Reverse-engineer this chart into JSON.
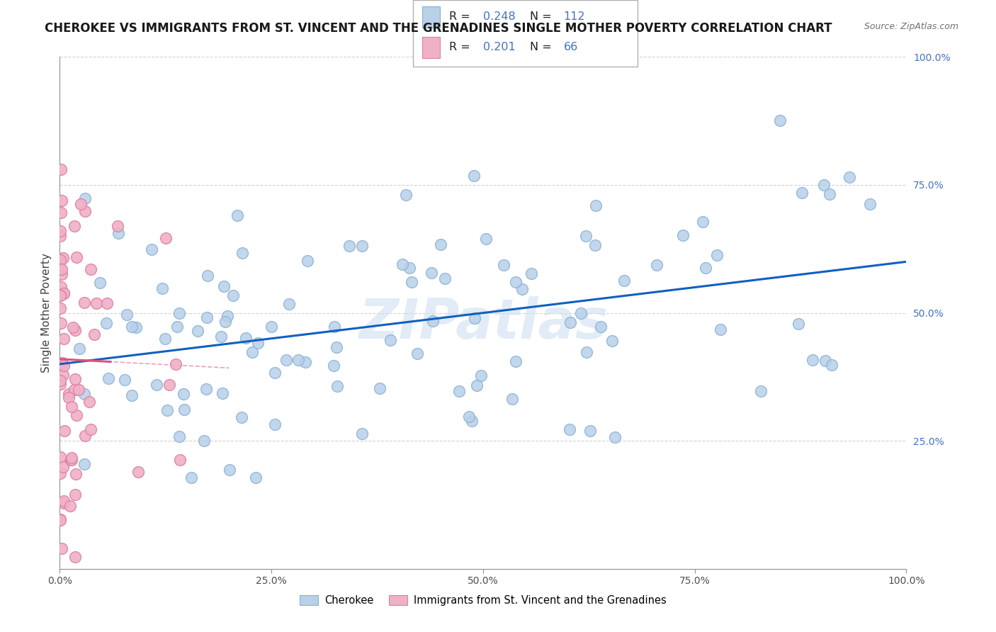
{
  "title": "CHEROKEE VS IMMIGRANTS FROM ST. VINCENT AND THE GRENADINES SINGLE MOTHER POVERTY CORRELATION CHART",
  "source": "Source: ZipAtlas.com",
  "ylabel": "Single Mother Poverty",
  "xlim": [
    0,
    1.0
  ],
  "ylim": [
    0,
    1.0
  ],
  "xtick_labels": [
    "0.0%",
    "25.0%",
    "50.0%",
    "75.0%",
    "100.0%"
  ],
  "xtick_vals": [
    0.0,
    0.25,
    0.5,
    0.75,
    1.0
  ],
  "ytick_labels": [
    "100.0%",
    "75.0%",
    "50.0%",
    "25.0%"
  ],
  "ytick_vals": [
    1.0,
    0.75,
    0.5,
    0.25
  ],
  "legend_label1": "Cherokee",
  "legend_label2": "Immigrants from St. Vincent and the Grenadines",
  "R1": "0.248",
  "N1": "112",
  "R2": "0.201",
  "N2": "66",
  "color_blue": "#b8d0e8",
  "color_pink": "#f0b0c8",
  "edge_blue": "#8ab0d8",
  "edge_pink": "#e080a0",
  "line_blue": "#1060c0",
  "line_pink": "#e05080",
  "watermark": "ZIPatlas",
  "title_fontsize": 12,
  "label_fontsize": 11,
  "tick_fontsize": 10
}
